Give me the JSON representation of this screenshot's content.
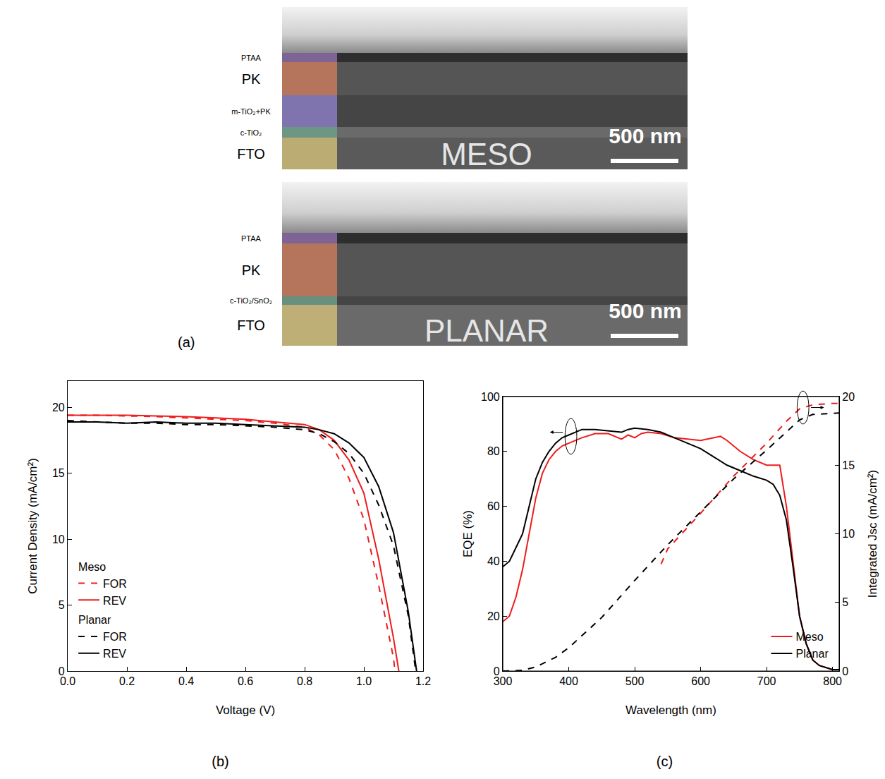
{
  "figure_a": {
    "panel_label": "(a)",
    "images": [
      {
        "title": "MESO",
        "scale_bar": "500 nm",
        "layers": [
          {
            "label": "PTAA",
            "color": "#8c6ca8"
          },
          {
            "label": "PK",
            "color": "#c77a5e"
          },
          {
            "label": "m-TiO₂+PK",
            "color": "#8a7cc0"
          },
          {
            "label": "c-TiO₂",
            "color": "#6f9e8a"
          },
          {
            "label": "FTO",
            "color": "#cdbb78"
          }
        ]
      },
      {
        "title": "PLANAR",
        "scale_bar": "500 nm",
        "layers": [
          {
            "label": "PTAA",
            "color": "#8c6ca8"
          },
          {
            "label": "PK",
            "color": "#c77a5e"
          },
          {
            "label": "c-TiO₂/SnO₂",
            "color": "#6f9e8a"
          },
          {
            "label": "FTO",
            "color": "#cdbb78"
          }
        ]
      }
    ]
  },
  "chart_data": [
    {
      "panel_label": "(b)",
      "type": "line",
      "x_label": "Voltage (V)",
      "y_label": "Current Density (mA/cm²)",
      "xlim": [
        0,
        1.2
      ],
      "xticks": [
        {
          "value": 0,
          "label": "0.0"
        },
        0.2,
        0.4,
        0.6,
        0.8,
        {
          "value": 1,
          "label": "1.0"
        },
        1.2
      ],
      "ylim": [
        0,
        22
      ],
      "yticks": [
        0,
        5,
        10,
        15,
        20
      ],
      "grid": false,
      "legend": "lower left",
      "series": [
        {
          "name": "FOR",
          "group": "Meso",
          "color": "#ee1c1c",
          "line_style": "dashed",
          "x": [
            0,
            0.1,
            0.2,
            0.3,
            0.4,
            0.5,
            0.6,
            0.7,
            0.8,
            0.85,
            0.9,
            0.95,
            1.0,
            1.05,
            1.1,
            1.105
          ],
          "values": [
            19.4,
            19.4,
            19.35,
            19.3,
            19.2,
            19.1,
            19.0,
            18.8,
            18.5,
            17.9,
            16.8,
            14.6,
            11.5,
            6.5,
            1.0,
            0
          ]
        },
        {
          "name": "REV",
          "group": "Meso",
          "color": "#ee1c1c",
          "line_style": "solid",
          "x": [
            0,
            0.1,
            0.2,
            0.3,
            0.4,
            0.5,
            0.6,
            0.7,
            0.8,
            0.85,
            0.9,
            0.95,
            1.0,
            1.05,
            1.1,
            1.118
          ],
          "values": [
            19.4,
            19.4,
            19.4,
            19.35,
            19.3,
            19.2,
            19.1,
            18.9,
            18.7,
            18.3,
            17.5,
            16.0,
            13.5,
            8.5,
            2.5,
            0
          ]
        },
        {
          "name": "FOR",
          "group": "Planar",
          "color": "#000000",
          "line_style": "dashed",
          "x": [
            0,
            0.1,
            0.2,
            0.3,
            0.4,
            0.5,
            0.6,
            0.7,
            0.8,
            0.85,
            0.9,
            0.95,
            1.0,
            1.05,
            1.1,
            1.15,
            1.175
          ],
          "values": [
            19.0,
            18.9,
            18.8,
            18.8,
            18.7,
            18.7,
            18.6,
            18.5,
            18.3,
            18.0,
            17.4,
            16.5,
            15.0,
            12.6,
            9.5,
            4.2,
            0
          ]
        },
        {
          "name": "REV",
          "group": "Planar",
          "color": "#000000",
          "line_style": "solid",
          "x": [
            0,
            0.1,
            0.2,
            0.3,
            0.4,
            0.5,
            0.6,
            0.7,
            0.8,
            0.85,
            0.9,
            0.95,
            1.0,
            1.05,
            1.1,
            1.15,
            1.178
          ],
          "values": [
            18.9,
            18.9,
            18.8,
            18.9,
            18.8,
            18.8,
            18.7,
            18.6,
            18.5,
            18.3,
            18.0,
            17.3,
            16.2,
            14.0,
            10.5,
            4.5,
            0
          ]
        }
      ]
    },
    {
      "panel_label": "(c)",
      "type": "line",
      "x_label": "Wavelength (nm)",
      "y_label": "EQE (%)",
      "y2_label": "Integrated Jsc (mA/cm²)",
      "xlim": [
        300,
        810
      ],
      "xticks": [
        300,
        400,
        500,
        600,
        700,
        800
      ],
      "ylim": [
        0,
        100
      ],
      "yticks": [
        0,
        20,
        40,
        60,
        80,
        100
      ],
      "y2lim": [
        0,
        20
      ],
      "y2ticks": [
        0,
        5,
        10,
        15,
        20
      ],
      "grid": false,
      "legend": "lower right",
      "series": [
        {
          "name": "Meso",
          "color": "#ee1c1c",
          "line_style": "solid",
          "x": [
            300,
            310,
            320,
            330,
            340,
            350,
            360,
            370,
            380,
            390,
            400,
            420,
            440,
            460,
            480,
            490,
            500,
            510,
            520,
            540,
            560,
            580,
            600,
            610,
            620,
            630,
            640,
            660,
            680,
            700,
            710,
            720,
            730,
            740,
            750,
            760,
            770,
            780,
            800,
            810
          ],
          "values": [
            18,
            20,
            27,
            37,
            50,
            63,
            72,
            77,
            80,
            82,
            83,
            85,
            86.5,
            86.5,
            84.5,
            86,
            85,
            86.5,
            87,
            86.5,
            85,
            84.5,
            84,
            84.5,
            85,
            85.5,
            84,
            80,
            77,
            75,
            75,
            75,
            60,
            40,
            20,
            10,
            4,
            2,
            0.5,
            0.5
          ]
        },
        {
          "name": "Planar",
          "color": "#000000",
          "line_style": "solid",
          "x": [
            300,
            310,
            320,
            330,
            340,
            350,
            360,
            370,
            380,
            390,
            400,
            420,
            440,
            460,
            480,
            490,
            500,
            520,
            540,
            560,
            580,
            600,
            620,
            640,
            660,
            680,
            700,
            710,
            720,
            730,
            740,
            750,
            760,
            770,
            780,
            800,
            810
          ],
          "values": [
            38,
            40,
            45,
            50,
            60,
            70,
            76,
            80,
            83,
            85,
            86,
            88,
            88,
            87.5,
            87,
            88,
            88.5,
            88,
            87,
            85,
            83,
            81,
            78,
            75,
            73,
            71,
            69.5,
            68,
            64,
            55,
            38,
            20,
            10,
            4,
            2,
            0.5,
            0.5
          ]
        },
        {
          "axis": "y2",
          "color": "#ee1c1c",
          "line_style": "dashed",
          "x": [
            540,
            550,
            600,
            650,
            700,
            730,
            750,
            770,
            800,
            810
          ],
          "values": [
            7.8,
            8.9,
            11.5,
            14.2,
            16.6,
            18.2,
            19.1,
            19.4,
            19.5,
            19.5
          ]
        },
        {
          "axis": "y2",
          "color": "#000000",
          "line_style": "dashed",
          "x": [
            300,
            330,
            350,
            380,
            400,
            450,
            500,
            550,
            600,
            650,
            700,
            730,
            750,
            770,
            800,
            810
          ],
          "values": [
            0,
            0.05,
            0.3,
            1.0,
            1.7,
            3.9,
            6.6,
            9.2,
            11.6,
            14.0,
            16.1,
            17.4,
            18.3,
            18.7,
            18.8,
            18.8
          ]
        }
      ]
    }
  ]
}
